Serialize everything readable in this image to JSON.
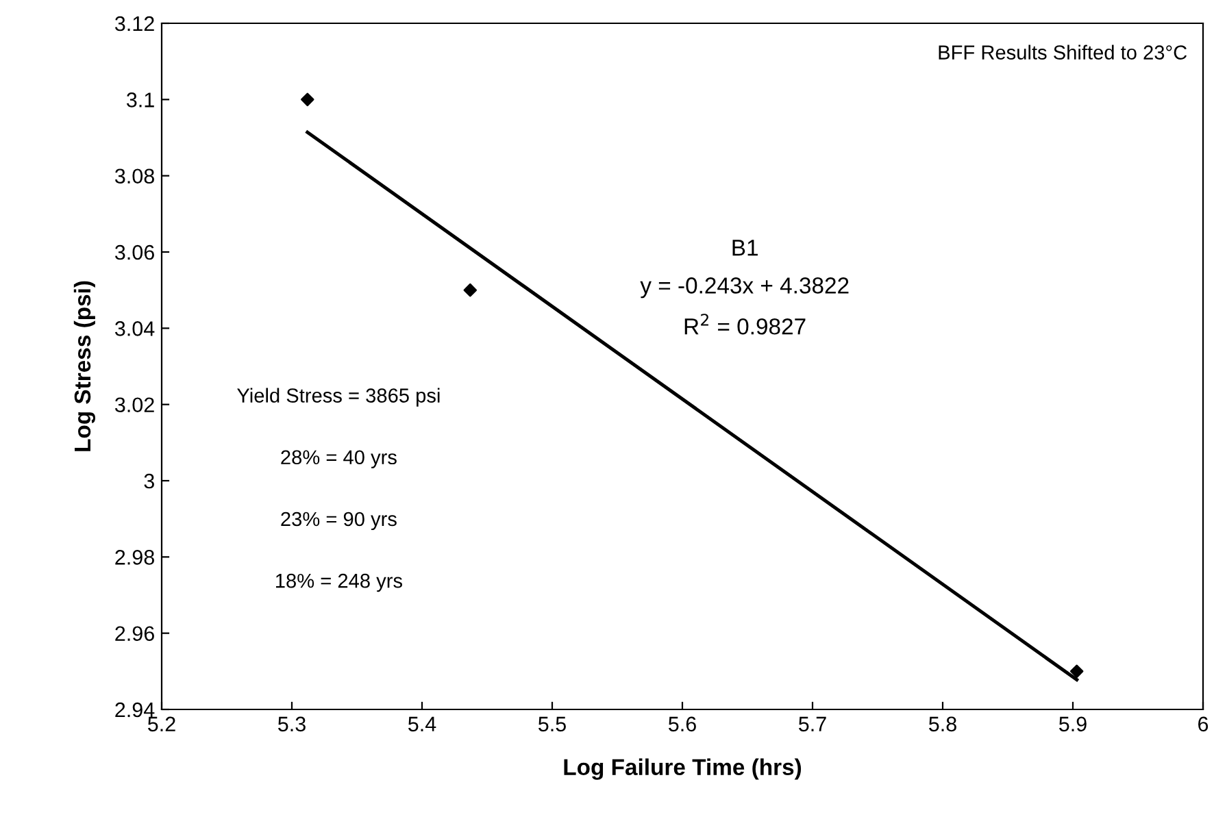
{
  "chart_data": {
    "type": "scatter",
    "xlabel": "Log Failure Time (hrs)",
    "ylabel": "Log Stress (psi)",
    "series": [
      {
        "color": "#000000",
        "marker": "diamond",
        "x": [
          5.312,
          5.437,
          5.903
        ],
        "values": [
          3.1,
          3.05,
          2.95
        ]
      },
      {
        "type": "line",
        "color": "#000000",
        "marker": "none",
        "line_style": "solid",
        "x": [
          5.312,
          5.903
        ],
        "values": [
          3.0914,
          2.9478
        ]
      }
    ],
    "xlim": [
      5.2,
      6
    ],
    "xticks": [
      5.2,
      5.3,
      5.4,
      5.5,
      5.6,
      5.7,
      5.8,
      5.9,
      6
    ],
    "ylim": [
      2.94,
      3.12
    ],
    "yticks": [
      2.94,
      2.96,
      2.98,
      3,
      3.02,
      3.04,
      3.06,
      3.08,
      3.1,
      3.12
    ],
    "grid": false,
    "legend": false,
    "annotations": [
      "BFF Results Shifted to 23°C",
      "B1",
      "y = -0.243x + 4.3822",
      "R$^{2}$ = 0.9827",
      "Yield Stress = 3865 psi",
      "28% = 40 yrs",
      "23% = 90 yrs",
      "18% = 248 yrs"
    ]
  }
}
